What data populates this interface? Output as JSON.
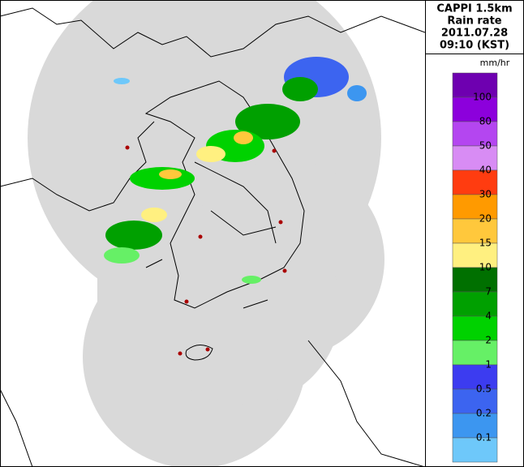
{
  "header": {
    "title_lines": [
      "CAPPI 1.5km",
      "Rain rate",
      "2011.07.28",
      "09:10 (KST)"
    ]
  },
  "legend": {
    "unit": "mm/hr",
    "colors": [
      "#6e00b0",
      "#8c00dc",
      "#b446f0",
      "#d88cf4",
      "#ff3c10",
      "#ff9a00",
      "#ffc83c",
      "#fff080",
      "#007000",
      "#00a000",
      "#00d200",
      "#66f066",
      "#3c3cf0",
      "#3c64f0",
      "#3c96f0",
      "#6ec8fa"
    ],
    "labels": [
      "100",
      "80",
      "50",
      "40",
      "30",
      "20",
      "15",
      "10",
      "7",
      "4",
      "2",
      "1",
      "0.5",
      "0.2",
      "0.1"
    ]
  }
}
